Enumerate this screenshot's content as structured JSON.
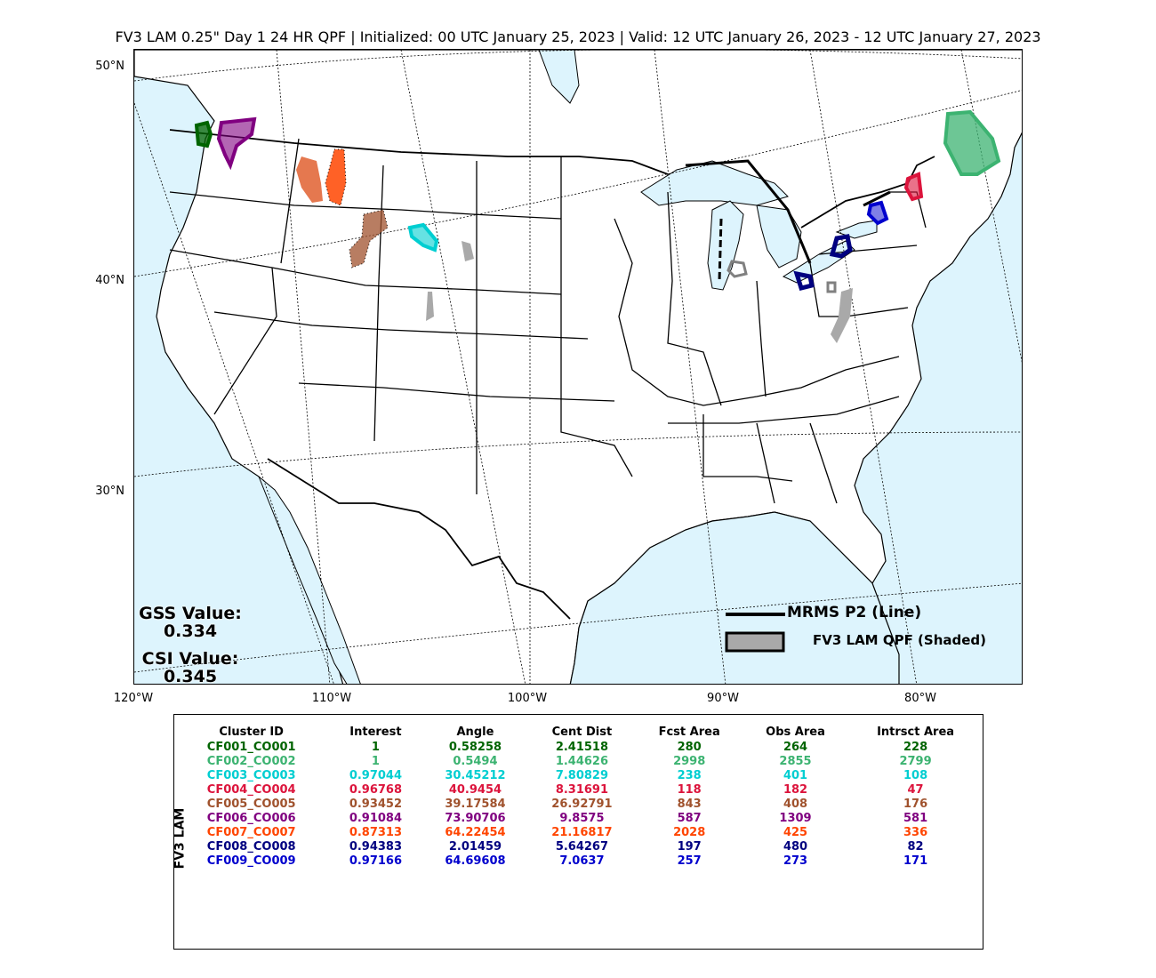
{
  "title": "FV3 LAM 0.25\" Day 1 24 HR QPF | Initialized: 00 UTC January 25, 2023 | Valid: 12 UTC January 26, 2023 - 12 UTC January 27, 2023",
  "map": {
    "lat_labels": [
      "50°N",
      "40°N",
      "30°N"
    ],
    "lon_labels": [
      "120°W",
      "110°W",
      "100°W",
      "90°W",
      "80°W"
    ],
    "ocean_color": "#ddf4fd",
    "land_color": "#ffffff"
  },
  "scores": {
    "gss_label": "GSS Value:",
    "gss_value": "0.334",
    "csi_label": "CSI Value:",
    "csi_value": "0.345"
  },
  "legend": {
    "line_label": "MRMS P2 (Line)",
    "shaded_label": "FV3 LAM QPF (Shaded)"
  },
  "table": {
    "side_label": "FV3 LAM",
    "headers": [
      "Cluster ID",
      "Interest",
      "Angle",
      "Cent Dist",
      "Fcst Area",
      "Obs Area",
      "Intrsct Area"
    ],
    "rows": [
      {
        "color": "#006400",
        "cells": [
          "CF001_CO001",
          "1",
          "0.58258",
          "2.41518",
          "280",
          "264",
          "228"
        ]
      },
      {
        "color": "#3cb371",
        "cells": [
          "CF002_CO002",
          "1",
          "0.5494",
          "1.44626",
          "2998",
          "2855",
          "2799"
        ]
      },
      {
        "color": "#00ced1",
        "cells": [
          "CF003_CO003",
          "0.97044",
          "30.45212",
          "7.80829",
          "238",
          "401",
          "108"
        ]
      },
      {
        "color": "#dc143c",
        "cells": [
          "CF004_CO004",
          "0.96768",
          "40.9454",
          "8.31691",
          "118",
          "182",
          "47"
        ]
      },
      {
        "color": "#a0522d",
        "cells": [
          "CF005_CO005",
          "0.93452",
          "39.17584",
          "26.92791",
          "843",
          "408",
          "176"
        ]
      },
      {
        "color": "#800080",
        "cells": [
          "CF006_CO006",
          "0.91084",
          "73.90706",
          "9.8575",
          "587",
          "1309",
          "581"
        ]
      },
      {
        "color": "#ff4500",
        "cells": [
          "CF007_CO007",
          "0.87313",
          "64.22454",
          "21.16817",
          "2028",
          "425",
          "336"
        ]
      },
      {
        "color": "#000080",
        "cells": [
          "CF008_CO008",
          "0.94383",
          "2.01459",
          "5.64267",
          "197",
          "480",
          "82"
        ]
      },
      {
        "color": "#0000cd",
        "cells": [
          "CF009_CO009",
          "0.97166",
          "64.69608",
          "7.0637",
          "257",
          "273",
          "171"
        ]
      }
    ]
  }
}
